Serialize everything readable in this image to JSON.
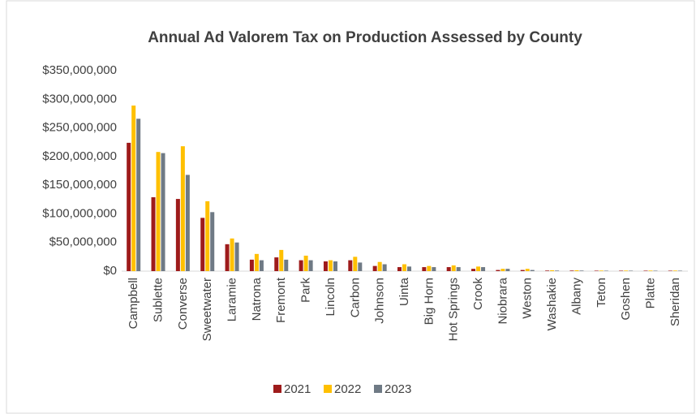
{
  "chart_data": {
    "type": "bar",
    "title": "Annual Ad Valorem Tax on Production Assessed by County",
    "categories": [
      "Campbell",
      "Sublette",
      "Converse",
      "Sweetwater",
      "Laramie",
      "Natrona",
      "Fremont",
      "Park",
      "Lincoln",
      "Carbon",
      "Johnson",
      "Uinta",
      "Big Horn",
      "Hot Springs",
      "Crook",
      "Niobrara",
      "Weston",
      "Washakie",
      "Albany",
      "Teton",
      "Goshen",
      "Platte",
      "Sheridan"
    ],
    "series": [
      {
        "name": "2021",
        "color": "#9e1b1b",
        "values": [
          224000000,
          129000000,
          126000000,
          93000000,
          47000000,
          20000000,
          24000000,
          19000000,
          17000000,
          19000000,
          9000000,
          7000000,
          7000000,
          7000000,
          4000000,
          2000000,
          2000000,
          1000000,
          1000000,
          800000,
          800000,
          800000,
          800000
        ]
      },
      {
        "name": "2022",
        "color": "#ffc000",
        "values": [
          289000000,
          208000000,
          218000000,
          122000000,
          57000000,
          30000000,
          37000000,
          27000000,
          19000000,
          25000000,
          16000000,
          12000000,
          9000000,
          10000000,
          8000000,
          4000000,
          4000000,
          1500000,
          1500000,
          1000000,
          1000000,
          1000000,
          1000000
        ]
      },
      {
        "name": "2023",
        "color": "#6f7a85",
        "values": [
          266000000,
          206000000,
          168000000,
          103000000,
          50000000,
          19000000,
          20000000,
          19000000,
          17000000,
          15000000,
          12000000,
          8000000,
          7000000,
          7000000,
          7000000,
          4000000,
          2000000,
          1000000,
          1000000,
          800000,
          800000,
          800000,
          800000
        ]
      }
    ],
    "ylim": [
      0,
      350000000
    ],
    "yticks": [
      {
        "value": 0,
        "label": "$0"
      },
      {
        "value": 50000000,
        "label": "$50,000,000"
      },
      {
        "value": 100000000,
        "label": "$100,000,000"
      },
      {
        "value": 150000000,
        "label": "$150,000,000"
      },
      {
        "value": 200000000,
        "label": "$200,000,000"
      },
      {
        "value": 250000000,
        "label": "$250,000,000"
      },
      {
        "value": 300000000,
        "label": "$300,000,000"
      },
      {
        "value": 350000000,
        "label": "$350,000,000"
      }
    ],
    "grid": false,
    "legend": "bottom"
  }
}
